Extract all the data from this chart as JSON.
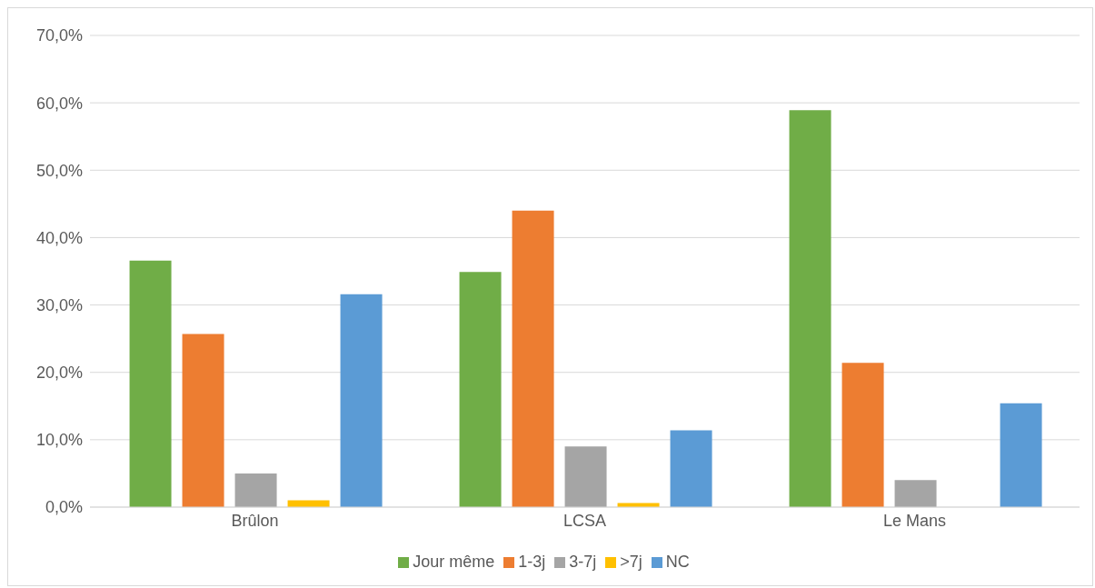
{
  "chart_data": {
    "type": "bar",
    "categories": [
      "Brûlon",
      "LCSA",
      "Le Mans"
    ],
    "series": [
      {
        "name": "Jour même",
        "color": "#70ad47",
        "values": [
          36.6,
          34.9,
          58.9
        ]
      },
      {
        "name": "1-3j",
        "color": "#ed7d31",
        "values": [
          25.7,
          44.0,
          21.4
        ]
      },
      {
        "name": "3-7j",
        "color": "#a5a5a5",
        "values": [
          5.0,
          9.0,
          4.0
        ]
      },
      {
        "name": ">7j",
        "color": "#ffc000",
        "values": [
          1.0,
          0.6,
          0
        ]
      },
      {
        "name": "NC",
        "color": "#5b9bd5",
        "values": [
          31.6,
          11.4,
          15.4
        ]
      }
    ],
    "ylim": [
      0,
      70
    ],
    "yticks": [
      {
        "value": 0,
        "label": "0,0%"
      },
      {
        "value": 10,
        "label": "10,0%"
      },
      {
        "value": 20,
        "label": "20,0%"
      },
      {
        "value": 30,
        "label": "30,0%"
      },
      {
        "value": 40,
        "label": "40,0%"
      },
      {
        "value": 50,
        "label": "50,0%"
      },
      {
        "value": 60,
        "label": "60,0%"
      },
      {
        "value": 70,
        "label": "70,0%"
      }
    ],
    "grid": "y",
    "legend": "bottom"
  }
}
